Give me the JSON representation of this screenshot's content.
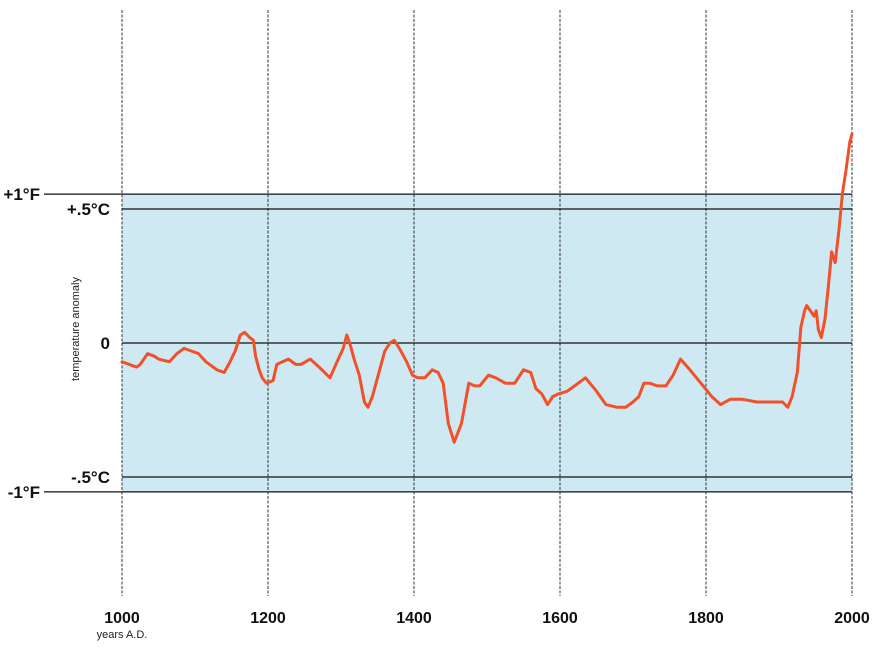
{
  "chart_data": {
    "type": "line",
    "title": "",
    "xlabel": "years A.D.",
    "ylabel": "temperature anomaly",
    "xlim": [
      1000,
      2000
    ],
    "ylim_celsius": [
      -0.5,
      0.5
    ],
    "x_ticks": [
      {
        "value": 1000,
        "label": "1000"
      },
      {
        "value": 1200,
        "label": "1200"
      },
      {
        "value": 1400,
        "label": "1400"
      },
      {
        "value": 1600,
        "label": "1600"
      },
      {
        "value": 1800,
        "label": "1800"
      },
      {
        "value": 2000,
        "label": "2000"
      }
    ],
    "y_lines": [
      {
        "value_c": 0.5556,
        "label": "+1°F",
        "scale": "F"
      },
      {
        "value_c": 0.5,
        "label": "+.5°C",
        "scale": "C"
      },
      {
        "value_c": 0,
        "label": "0",
        "scale": "C"
      },
      {
        "value_c": -0.5,
        "label": "-.5°C",
        "scale": "C"
      },
      {
        "value_c": -0.5556,
        "label": "-1°F",
        "scale": "F"
      }
    ],
    "band": {
      "from_c": -0.5556,
      "to_c": 0.5556
    },
    "grid": true,
    "colors": {
      "line": "#f0502a",
      "band": "#cfe9f2",
      "grid": "#222222"
    },
    "series": [
      {
        "points": [
          [
            1000,
            -0.07
          ],
          [
            1010,
            -0.08
          ],
          [
            1020,
            -0.09
          ],
          [
            1025,
            -0.08
          ],
          [
            1035,
            -0.04
          ],
          [
            1045,
            -0.05
          ],
          [
            1050,
            -0.06
          ],
          [
            1065,
            -0.07
          ],
          [
            1075,
            -0.04
          ],
          [
            1085,
            -0.02
          ],
          [
            1095,
            -0.03
          ],
          [
            1105,
            -0.04
          ],
          [
            1115,
            -0.07
          ],
          [
            1125,
            -0.09
          ],
          [
            1130,
            -0.1
          ],
          [
            1140,
            -0.11
          ],
          [
            1148,
            -0.07
          ],
          [
            1155,
            -0.03
          ],
          [
            1162,
            0.03
          ],
          [
            1168,
            0.04
          ],
          [
            1175,
            0.02
          ],
          [
            1180,
            0.01
          ],
          [
            1183,
            -0.05
          ],
          [
            1188,
            -0.1
          ],
          [
            1192,
            -0.13
          ],
          [
            1198,
            -0.15
          ],
          [
            1207,
            -0.14
          ],
          [
            1212,
            -0.08
          ],
          [
            1220,
            -0.07
          ],
          [
            1228,
            -0.06
          ],
          [
            1238,
            -0.08
          ],
          [
            1245,
            -0.08
          ],
          [
            1258,
            -0.06
          ],
          [
            1270,
            -0.09
          ],
          [
            1285,
            -0.13
          ],
          [
            1293,
            -0.08
          ],
          [
            1303,
            -0.02
          ],
          [
            1308,
            0.03
          ],
          [
            1313,
            -0.01
          ],
          [
            1318,
            -0.06
          ],
          [
            1325,
            -0.12
          ],
          [
            1332,
            -0.22
          ],
          [
            1337,
            -0.24
          ],
          [
            1343,
            -0.2
          ],
          [
            1350,
            -0.13
          ],
          [
            1360,
            -0.03
          ],
          [
            1367,
            0.0
          ],
          [
            1373,
            0.01
          ],
          [
            1380,
            -0.02
          ],
          [
            1390,
            -0.07
          ],
          [
            1398,
            -0.12
          ],
          [
            1405,
            -0.13
          ],
          [
            1415,
            -0.13
          ],
          [
            1425,
            -0.1
          ],
          [
            1433,
            -0.11
          ],
          [
            1440,
            -0.15
          ],
          [
            1447,
            -0.3
          ],
          [
            1455,
            -0.37
          ],
          [
            1465,
            -0.3
          ],
          [
            1475,
            -0.15
          ],
          [
            1483,
            -0.16
          ],
          [
            1490,
            -0.16
          ],
          [
            1502,
            -0.12
          ],
          [
            1512,
            -0.13
          ],
          [
            1525,
            -0.15
          ],
          [
            1538,
            -0.15
          ],
          [
            1550,
            -0.1
          ],
          [
            1560,
            -0.11
          ],
          [
            1567,
            -0.17
          ],
          [
            1575,
            -0.19
          ],
          [
            1583,
            -0.23
          ],
          [
            1590,
            -0.2
          ],
          [
            1598,
            -0.19
          ],
          [
            1610,
            -0.18
          ],
          [
            1620,
            -0.16
          ],
          [
            1635,
            -0.13
          ],
          [
            1650,
            -0.18
          ],
          [
            1663,
            -0.23
          ],
          [
            1678,
            -0.24
          ],
          [
            1690,
            -0.24
          ],
          [
            1700,
            -0.22
          ],
          [
            1708,
            -0.2
          ],
          [
            1715,
            -0.15
          ],
          [
            1723,
            -0.15
          ],
          [
            1733,
            -0.16
          ],
          [
            1745,
            -0.16
          ],
          [
            1755,
            -0.12
          ],
          [
            1765,
            -0.06
          ],
          [
            1778,
            -0.1
          ],
          [
            1793,
            -0.15
          ],
          [
            1808,
            -0.2
          ],
          [
            1820,
            -0.23
          ],
          [
            1833,
            -0.21
          ],
          [
            1850,
            -0.21
          ],
          [
            1870,
            -0.22
          ],
          [
            1893,
            -0.22
          ],
          [
            1905,
            -0.22
          ],
          [
            1912,
            -0.24
          ],
          [
            1918,
            -0.2
          ],
          [
            1925,
            -0.11
          ],
          [
            1930,
            0.06
          ],
          [
            1935,
            0.12
          ],
          [
            1938,
            0.14
          ],
          [
            1943,
            0.12
          ],
          [
            1948,
            0.1
          ],
          [
            1951,
            0.12
          ],
          [
            1954,
            0.05
          ],
          [
            1958,
            0.02
          ],
          [
            1963,
            0.09
          ],
          [
            1968,
            0.22
          ],
          [
            1972,
            0.34
          ],
          [
            1977,
            0.3
          ],
          [
            1982,
            0.42
          ],
          [
            1987,
            0.56
          ],
          [
            1992,
            0.65
          ],
          [
            1997,
            0.75
          ],
          [
            2000,
            0.78
          ]
        ]
      }
    ]
  }
}
